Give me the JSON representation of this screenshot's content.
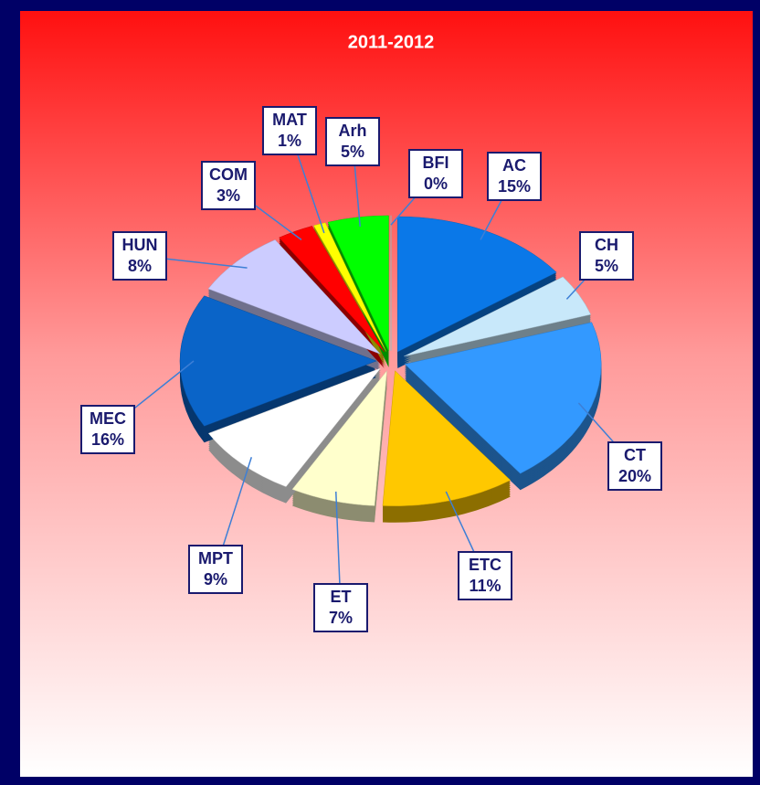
{
  "chart_data": {
    "type": "pie",
    "title": "2011-2012",
    "categories": [
      "AC",
      "CH",
      "CT",
      "ETC",
      "ET",
      "MPT",
      "MEC",
      "HUN",
      "COM",
      "MAT",
      "Arh",
      "BFI"
    ],
    "values": [
      15,
      5,
      20,
      11,
      7,
      9,
      16,
      8,
      3,
      1,
      5,
      0
    ],
    "value_labels": [
      "15%",
      "5%",
      "20%",
      "11%",
      "7%",
      "9%",
      "16%",
      "8%",
      "3%",
      "1%",
      "5%",
      "0%"
    ],
    "colors": [
      "#0a78e8",
      "#c8e8fa",
      "#3399ff",
      "#ffc800",
      "#ffffcc",
      "#ffffff",
      "#0a64c8",
      "#ccccff",
      "#ff0000",
      "#ffff00",
      "#00ff00",
      "#99ffff"
    ]
  }
}
